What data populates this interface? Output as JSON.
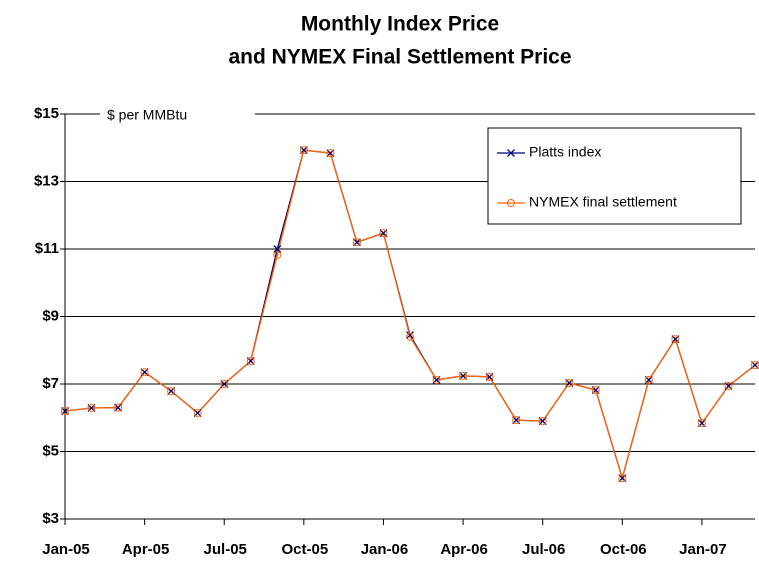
{
  "chart_data": {
    "type": "line",
    "title": [
      "Monthly Index Price",
      "and NYMEX Final Settlement Price"
    ],
    "annotation": "$ per MMBtu",
    "categories": [
      "Jan-05",
      null,
      null,
      "Apr-05",
      null,
      null,
      "Jul-05",
      null,
      null,
      "Oct-05",
      null,
      null,
      "Jan-06",
      null,
      null,
      "Apr-06",
      null,
      null,
      "Jul-06",
      null,
      null,
      "Oct-06",
      null,
      null,
      "Jan-07",
      null,
      null
    ],
    "series": [
      {
        "name": "Platts index",
        "color": "#000080",
        "marker": "x",
        "values": [
          6.2,
          6.29,
          6.3,
          7.35,
          6.79,
          6.14,
          7.0,
          7.68,
          11.0,
          13.93,
          13.84,
          11.2,
          11.47,
          8.45,
          7.12,
          7.24,
          7.21,
          5.93,
          5.9,
          7.03,
          6.82,
          4.21,
          7.12,
          8.33,
          5.84,
          6.94,
          7.56
        ]
      },
      {
        "name": "NYMEX final settlement",
        "color": "#ff6600",
        "marker": "circle",
        "values": [
          6.2,
          6.29,
          6.3,
          7.35,
          6.79,
          6.14,
          7.0,
          7.68,
          10.82,
          13.93,
          13.84,
          11.2,
          11.47,
          8.4,
          7.12,
          7.24,
          7.21,
          5.93,
          5.9,
          7.03,
          6.82,
          4.21,
          7.12,
          8.33,
          5.84,
          6.94,
          7.56
        ]
      }
    ],
    "ylim": [
      3,
      15
    ],
    "yticks": [
      {
        "value": 3,
        "label": "$3"
      },
      {
        "value": 5,
        "label": "$5"
      },
      {
        "value": 7,
        "label": "$7"
      },
      {
        "value": 9,
        "label": "$9"
      },
      {
        "value": 11,
        "label": "$11"
      },
      {
        "value": 13,
        "label": "$13"
      },
      {
        "value": 15,
        "label": "$15"
      }
    ],
    "grid": true,
    "legend": "upper right"
  }
}
